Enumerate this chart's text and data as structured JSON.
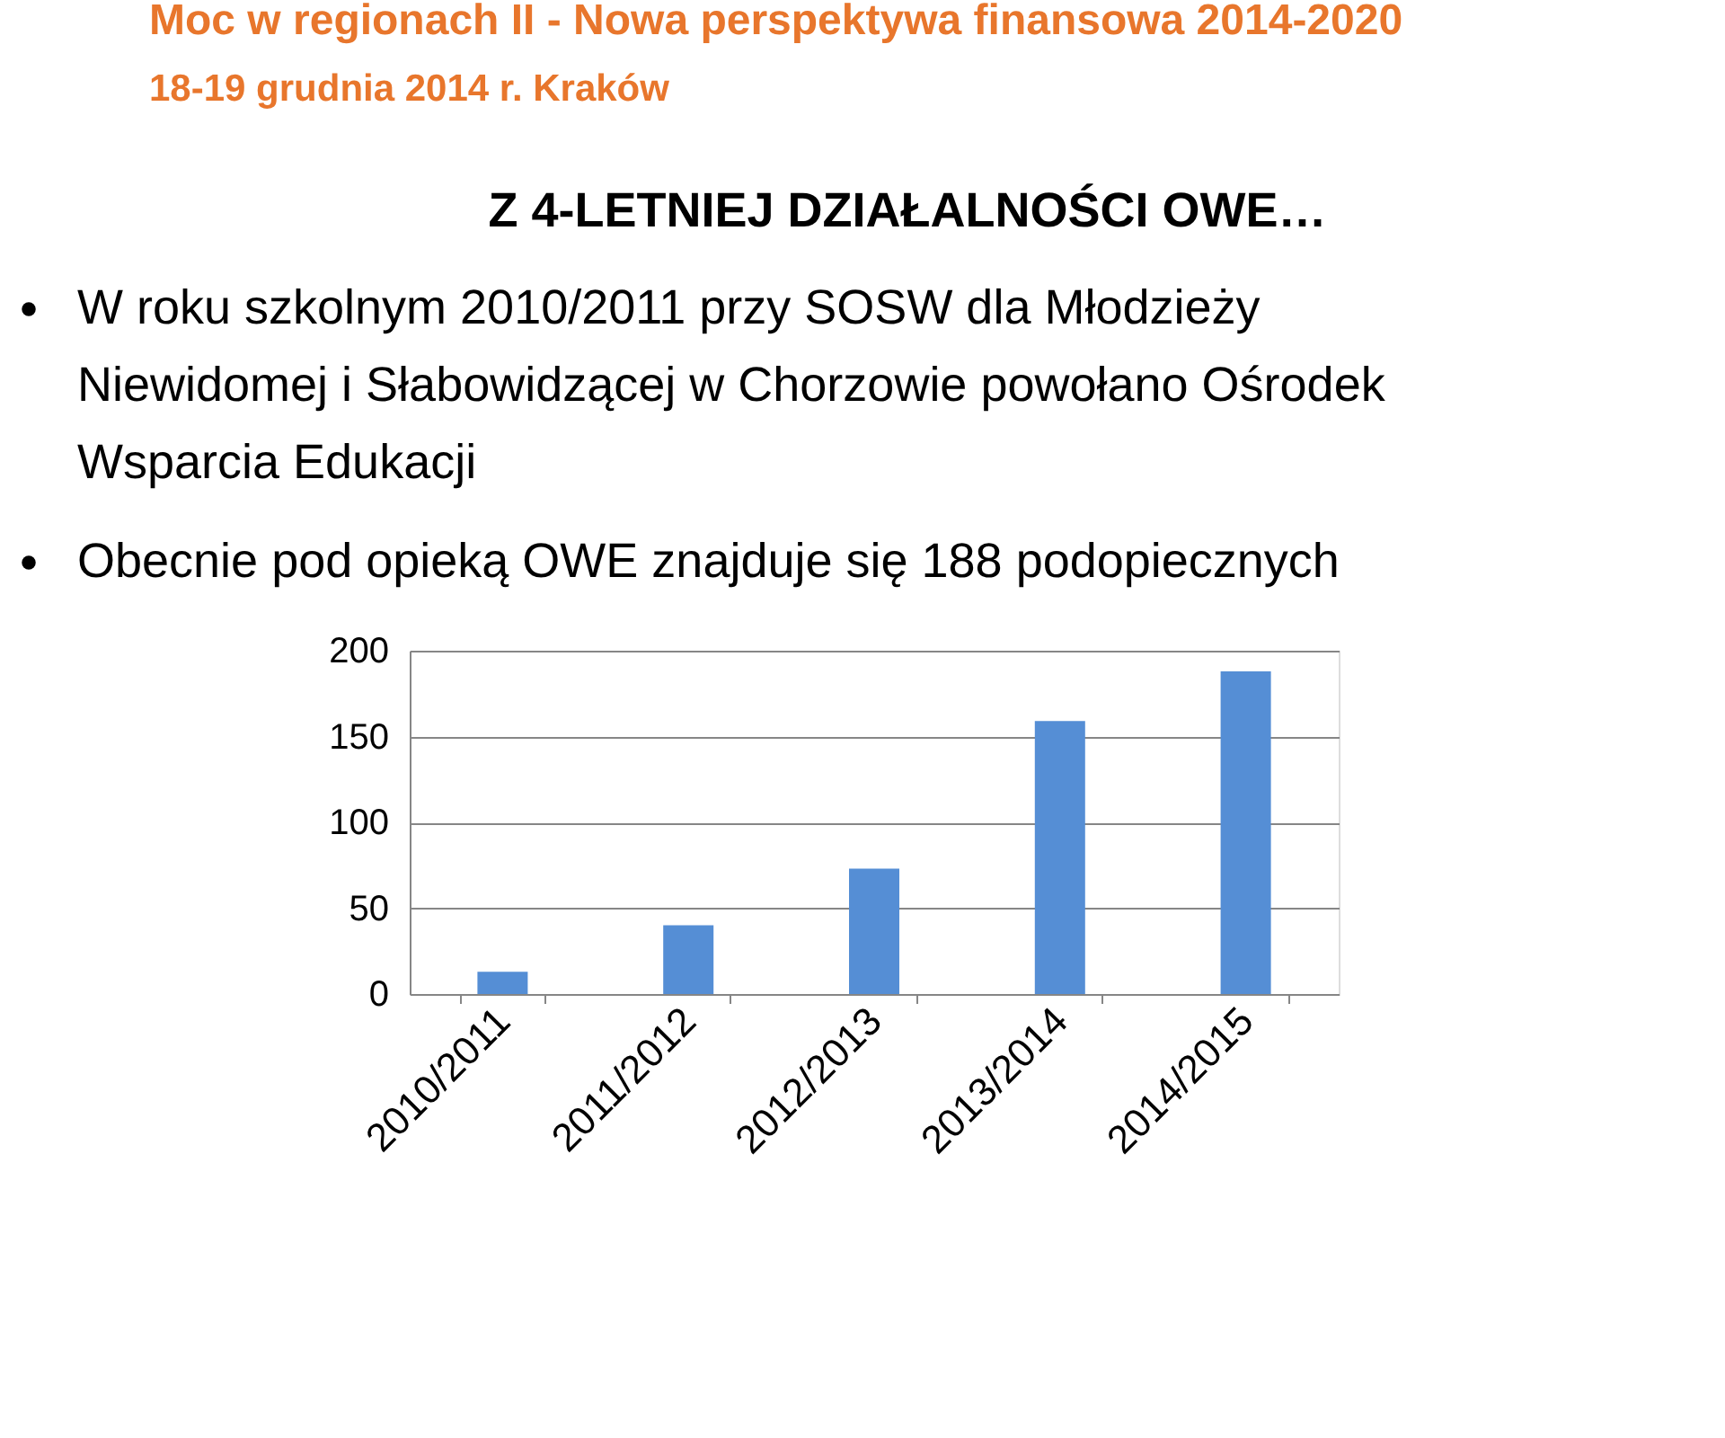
{
  "chart_data": {
    "type": "bar",
    "title": "Z 4-LETNIEJ DZIAŁALNOŚCI OWE…",
    "annotations": [
      "Moc w regionach II - Nowa perspektywa finansowa 2014-2020",
      "18-19 grudnia 2014 r. Kraków",
      "W roku szkolnym 2010/2011 przy SOSW dla Młodzieży Niewidomej i Słabowidzącej w Chorzowie powołano Ośrodek Wsparcia Edukacji",
      "Obecnie pod opieką OWE znajduje się 188 podopiecznych"
    ],
    "categories": [
      "2010/2011",
      "2011/2012",
      "2012/2013",
      "2013/2014",
      "2014/2015"
    ],
    "values": [
      13,
      40,
      73,
      159,
      188
    ],
    "color": "#558ed5",
    "ylim": [
      0,
      200
    ],
    "yticks": [
      0,
      50,
      100,
      150,
      200
    ],
    "grid": "y"
  }
}
